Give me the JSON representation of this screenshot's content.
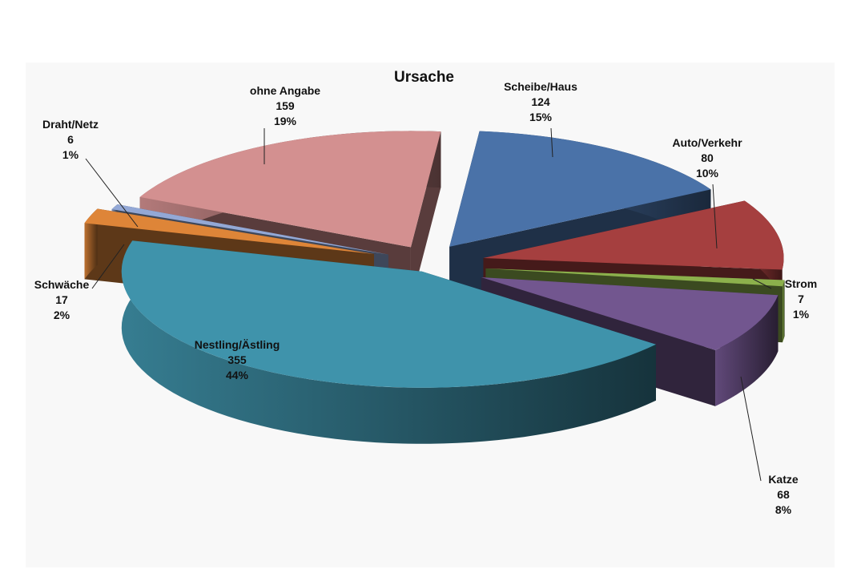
{
  "chart_data": {
    "type": "pie",
    "title": "Ursache",
    "slices": [
      {
        "name": "Scheibe/Haus",
        "value": 124,
        "percent": "15%",
        "color": "#4a72a8"
      },
      {
        "name": "Auto/Verkehr",
        "value": 80,
        "percent": "10%",
        "color": "#a53f3f"
      },
      {
        "name": "Strom",
        "value": 7,
        "percent": "1%",
        "color": "#8cb04c"
      },
      {
        "name": "Katze",
        "value": 68,
        "percent": "8%",
        "color": "#72568f"
      },
      {
        "name": "Nestling/Ästling",
        "value": 355,
        "percent": "44%",
        "color": "#3f93ab"
      },
      {
        "name": "Schwäche",
        "value": 17,
        "percent": "2%",
        "color": "#de8538"
      },
      {
        "name": "Draht/Netz",
        "value": 6,
        "percent": "1%",
        "color": "#93a8d6"
      },
      {
        "name": "ohne Angabe",
        "value": 159,
        "percent": "19%",
        "color": "#d39090"
      }
    ],
    "exploded": true,
    "three_d": true,
    "legend": "none",
    "data_labels": "name-value-percent"
  }
}
